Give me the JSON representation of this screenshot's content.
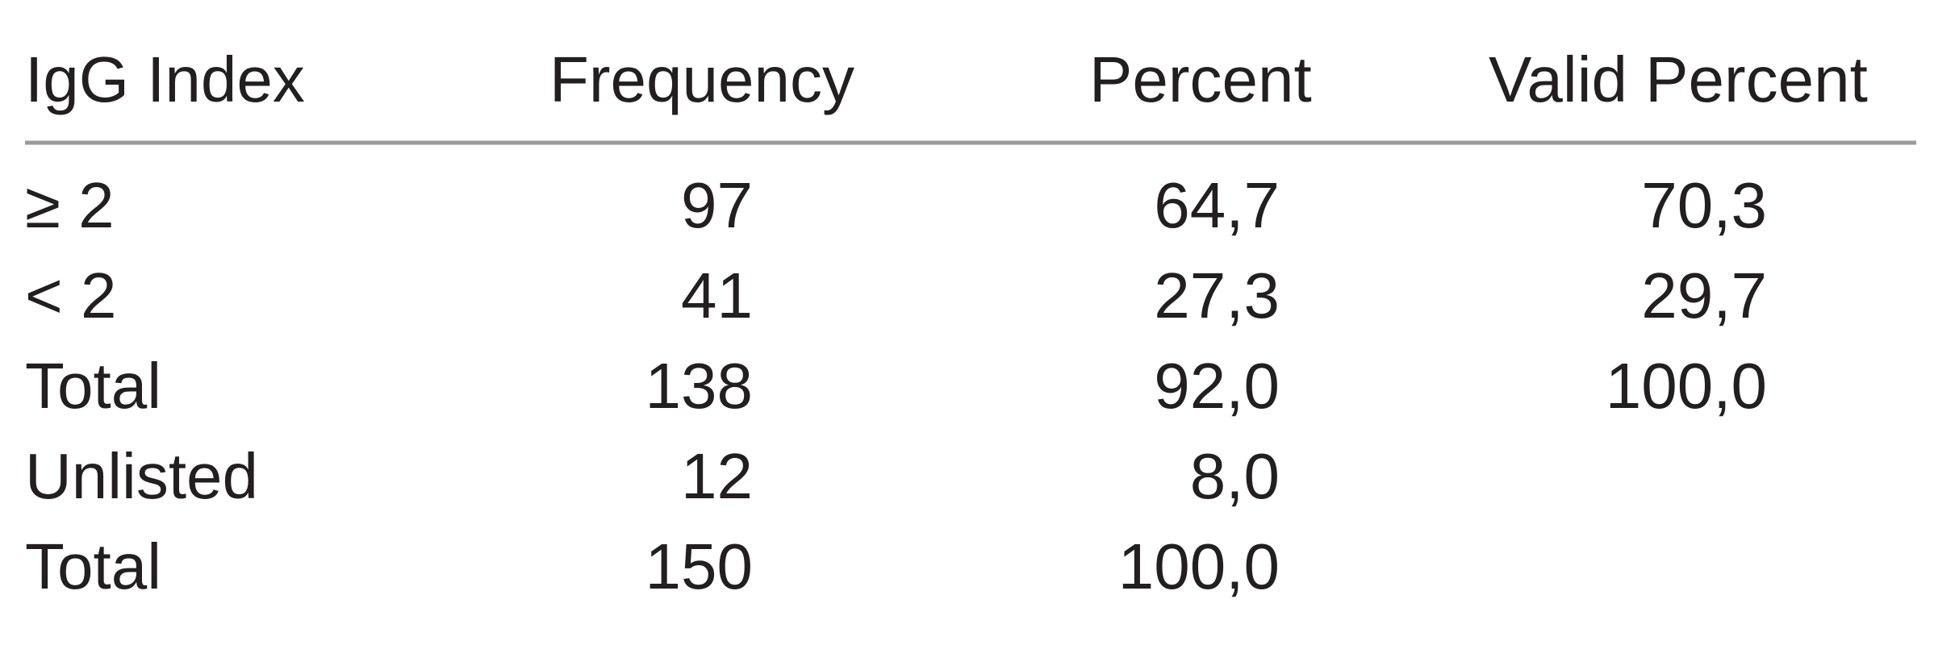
{
  "table": {
    "header": [
      "IgG Index",
      "Frequency",
      "Percent",
      "Valid Percent"
    ],
    "rows": [
      [
        "≥ 2",
        "97",
        "64,7",
        "70,3"
      ],
      [
        "< 2",
        "41",
        "27,3",
        "29,7"
      ],
      [
        "Total",
        "138",
        "92,0",
        "100,0"
      ],
      [
        "Unlisted",
        "12",
        "8,0"
      ],
      [
        "Total",
        "150",
        "100,0"
      ]
    ]
  }
}
